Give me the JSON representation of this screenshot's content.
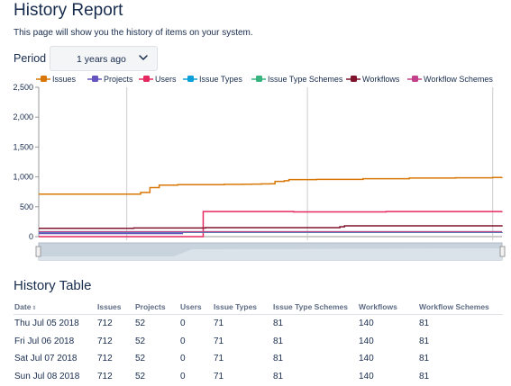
{
  "header": {
    "title": "History Report",
    "description": "This page will show you the history of items on your system."
  },
  "period": {
    "label": "Period",
    "value": "1 years ago"
  },
  "colors": {
    "text": "#172b4d",
    "grid": "#cccccc",
    "navigator": "#c8d3de"
  },
  "chart_data": {
    "type": "line",
    "ylim": [
      0,
      2500
    ],
    "yticks": [
      0,
      500,
      1000,
      1500,
      2000,
      2500
    ],
    "ytick_labels": [
      "0",
      "500",
      "1,000",
      "1,500",
      "2,000",
      "2,500"
    ],
    "x_range": [
      0,
      100
    ],
    "vertical_markers": [
      19,
      58,
      98
    ],
    "legend_position": "top",
    "series": [
      {
        "name": "Issues",
        "color": "#d97706",
        "points": [
          [
            0,
            712
          ],
          [
            20,
            712
          ],
          [
            22,
            740
          ],
          [
            24,
            820
          ],
          [
            26,
            862
          ],
          [
            30,
            870
          ],
          [
            40,
            875
          ],
          [
            44,
            877
          ],
          [
            46,
            880
          ],
          [
            48,
            882
          ],
          [
            50,
            884
          ],
          [
            51,
            925
          ],
          [
            53,
            935
          ],
          [
            54,
            955
          ],
          [
            60,
            958
          ],
          [
            70,
            970
          ],
          [
            80,
            980
          ],
          [
            90,
            985
          ],
          [
            98,
            990
          ],
          [
            100,
            995
          ]
        ]
      },
      {
        "name": "Projects",
        "color": "#6554c0",
        "points": [
          [
            0,
            52
          ],
          [
            30,
            52
          ],
          [
            31,
            72
          ],
          [
            60,
            72
          ],
          [
            100,
            75
          ]
        ]
      },
      {
        "name": "Users",
        "color": "#e5285f",
        "points": [
          [
            0,
            0
          ],
          [
            35,
            0
          ],
          [
            35.5,
            420
          ],
          [
            55,
            415
          ],
          [
            75,
            420
          ],
          [
            100,
            425
          ]
        ]
      },
      {
        "name": "Issue Types",
        "color": "#0c9fd8",
        "points": [
          [
            0,
            71
          ],
          [
            100,
            71
          ]
        ]
      },
      {
        "name": "Issue Type Schemes",
        "color": "#36b37e",
        "points": [
          [
            0,
            81
          ],
          [
            100,
            81
          ]
        ]
      },
      {
        "name": "Workflows",
        "color": "#80142e",
        "points": [
          [
            0,
            140
          ],
          [
            20,
            140
          ],
          [
            20.5,
            145
          ],
          [
            36,
            150
          ],
          [
            65,
            165
          ],
          [
            66,
            180
          ],
          [
            100,
            190
          ]
        ]
      },
      {
        "name": "Workflow Schemes",
        "color": "#c2418a",
        "points": [
          [
            0,
            81
          ],
          [
            100,
            81
          ]
        ]
      }
    ]
  },
  "table": {
    "title": "History Table",
    "sort_icon": "sort-icon",
    "columns": [
      "Date",
      "Issues",
      "Projects",
      "Users",
      "Issue Types",
      "Issue Type Schemes",
      "Workflows",
      "Workflow Schemes"
    ],
    "rows": [
      [
        "Thu Jul 05 2018",
        "712",
        "52",
        "0",
        "71",
        "81",
        "140",
        "81"
      ],
      [
        "Fri Jul 06 2018",
        "712",
        "52",
        "0",
        "71",
        "81",
        "140",
        "81"
      ],
      [
        "Sat Jul 07 2018",
        "712",
        "52",
        "0",
        "71",
        "81",
        "140",
        "81"
      ],
      [
        "Sun Jul 08 2018",
        "712",
        "52",
        "0",
        "71",
        "81",
        "140",
        "81"
      ]
    ]
  }
}
